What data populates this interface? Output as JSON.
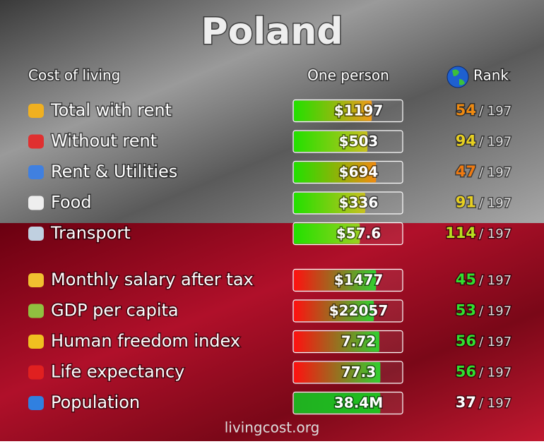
{
  "title": "Poland",
  "header": {
    "label": "Cost of living",
    "value": "One person",
    "rank": "Rank"
  },
  "sections": [
    {
      "rows": [
        {
          "label": "Total with rent",
          "value": "$1197",
          "fill": 72,
          "bar_colors": [
            "#22e000",
            "#f09a1a"
          ],
          "rank": 54,
          "rank_color": "#f08a10",
          "rank_of": "/ 197"
        },
        {
          "label": "Without rent",
          "value": "$503",
          "fill": 68,
          "bar_colors": [
            "#22e000",
            "#c8c020"
          ],
          "rank": 94,
          "rank_color": "#e8d020",
          "rank_of": "/ 197"
        },
        {
          "label": "Rent & Utilities",
          "value": "$694",
          "fill": 76,
          "bar_colors": [
            "#22e000",
            "#f08a10"
          ],
          "rank": 47,
          "rank_color": "#f07a10",
          "rank_of": "/ 197"
        },
        {
          "label": "Food",
          "value": "$336",
          "fill": 66,
          "bar_colors": [
            "#22e000",
            "#c8c020"
          ],
          "rank": 91,
          "rank_color": "#e8d020",
          "rank_of": "/ 197"
        },
        {
          "label": "Transport",
          "value": "$57.6",
          "fill": 61,
          "bar_colors": [
            "#22e000",
            "#9ad020"
          ],
          "rank": 114,
          "rank_color": "#b8e020",
          "rank_of": "/ 197"
        }
      ]
    },
    {
      "rows": [
        {
          "label": "Monthly salary after tax",
          "value": "$1477",
          "fill": 76,
          "bar_colors": [
            "#ff1010",
            "#30d030"
          ],
          "rank": 45,
          "rank_color": "#30e030",
          "rank_of": "/ 197"
        },
        {
          "label": "GDP per capita",
          "value": "$22057",
          "fill": 74,
          "bar_colors": [
            "#ff1010",
            "#30d030"
          ],
          "rank": 53,
          "rank_color": "#30e030",
          "rank_of": "/ 197"
        },
        {
          "label": "Human freedom index",
          "value": "7.72",
          "fill": 79,
          "bar_colors": [
            "#ff1010",
            "#30d030"
          ],
          "rank": 56,
          "rank_color": "#30e030",
          "rank_of": "/ 197"
        },
        {
          "label": "Life expectancy",
          "value": "77.3",
          "fill": 80,
          "bar_colors": [
            "#ff1010",
            "#30d030"
          ],
          "rank": 56,
          "rank_color": "#30e030",
          "rank_of": "/ 197"
        },
        {
          "label": "Population",
          "value": "38.4M",
          "fill": 80,
          "bar_colors": [
            "#20b020",
            "#20c020"
          ],
          "rank": 37,
          "rank_color": "#ffffff",
          "rank_of": "/ 197"
        }
      ]
    }
  ],
  "footer": "livingcost.org"
}
